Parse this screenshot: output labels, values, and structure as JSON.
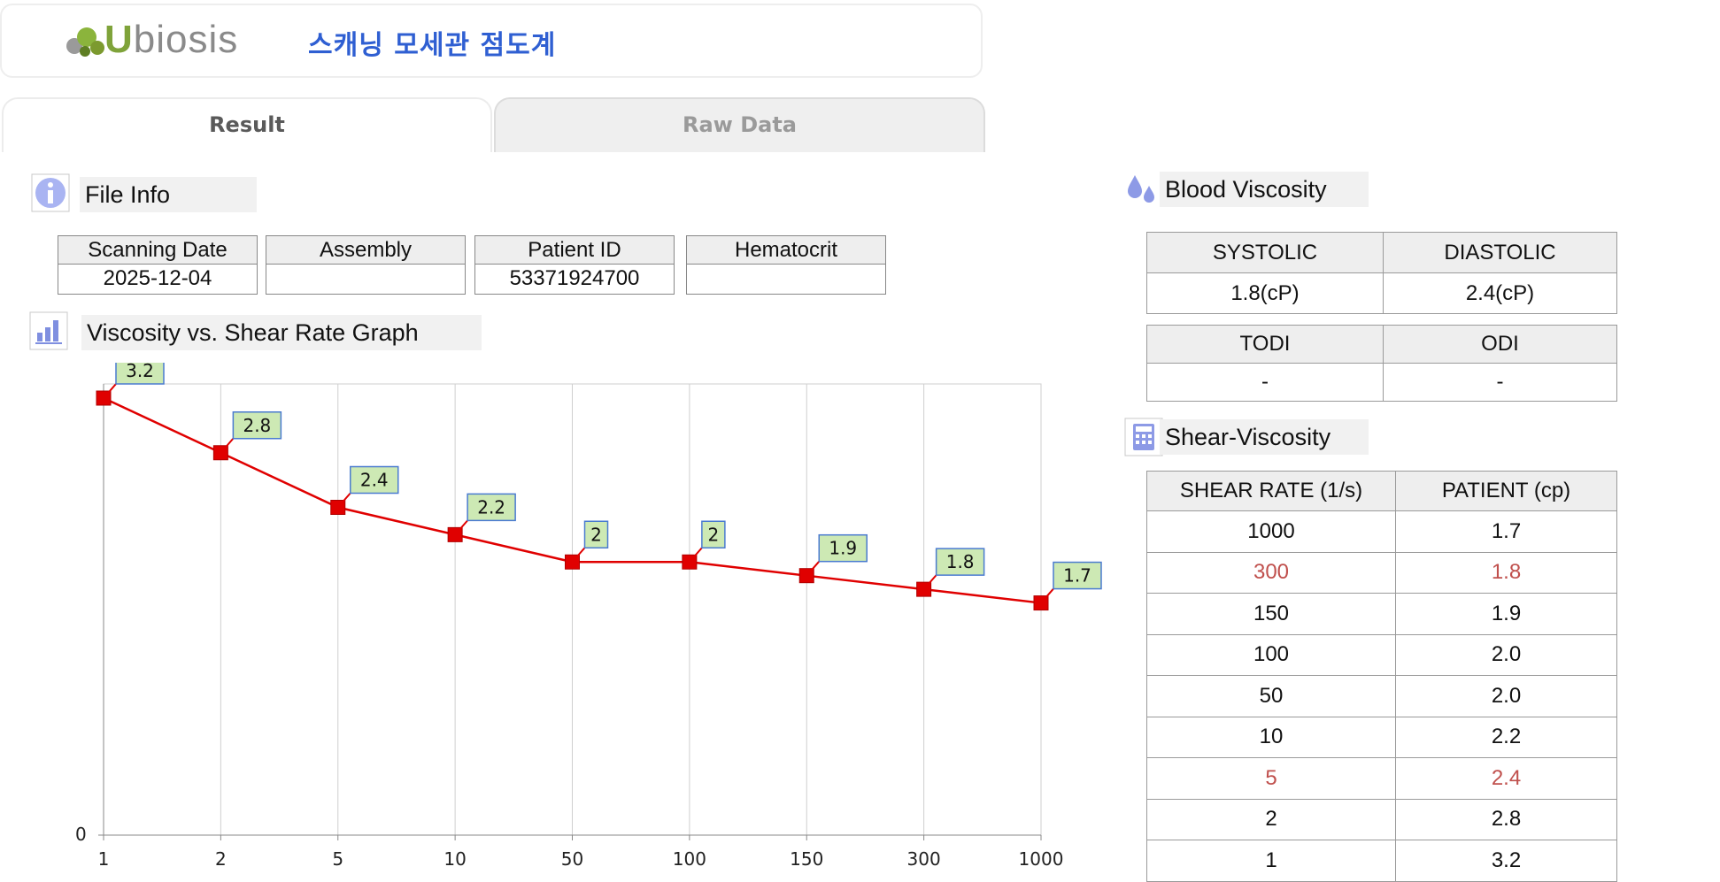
{
  "header": {
    "logo_letter": "U",
    "logo_rest": "biosis",
    "title": "스캐닝 모세관 점도계",
    "accent_color": "#2f5fd2"
  },
  "tabs": [
    {
      "label": "Result",
      "active": true
    },
    {
      "label": "Raw Data",
      "active": false
    }
  ],
  "file_info": {
    "title": "File Info",
    "icon": "info-icon",
    "columns": [
      "Scanning Date",
      "Assembly",
      "Patient ID",
      "Hematocrit"
    ],
    "values": [
      "2025-12-04",
      "",
      "53371924700",
      ""
    ]
  },
  "graph_section": {
    "title": "Viscosity vs. Shear Rate Graph",
    "icon": "bar-chart-icon"
  },
  "chart_data": {
    "type": "line",
    "categories": [
      "1",
      "2",
      "5",
      "10",
      "50",
      "100",
      "150",
      "300",
      "1000"
    ],
    "series": [
      {
        "values": [
          3.2,
          2.8,
          2.4,
          2.2,
          2,
          2,
          1.9,
          1.8,
          1.7
        ],
        "color": "#e00000"
      }
    ],
    "data_labels": [
      "3.2",
      "2.8",
      "2.4",
      "2.2",
      "2",
      "2",
      "1.9",
      "1.8",
      "1.7"
    ],
    "y_tick_labels": [
      "0"
    ],
    "ylim": [
      0,
      3.2
    ],
    "grid": "vertical",
    "label_bg": "#cde9b4",
    "label_border": "#4a7bd0"
  },
  "blood_viscosity": {
    "title": "Blood Viscosity",
    "icon": "drop-icon",
    "row1_headers": [
      "SYSTOLIC",
      "DIASTOLIC"
    ],
    "row1_values": [
      "1.8(cP)",
      "2.4(cP)"
    ],
    "row2_headers": [
      "TODI",
      "ODI"
    ],
    "row2_values": [
      "-",
      "-"
    ]
  },
  "shear_viscosity": {
    "title": "Shear-Viscosity",
    "icon": "calculator-icon",
    "headers": [
      "SHEAR RATE (1/s)",
      "PATIENT (cp)"
    ],
    "rows": [
      {
        "rate": "1000",
        "value": "1.7",
        "highlight": false
      },
      {
        "rate": "300",
        "value": "1.8",
        "highlight": true
      },
      {
        "rate": "150",
        "value": "1.9",
        "highlight": false
      },
      {
        "rate": "100",
        "value": "2.0",
        "highlight": false
      },
      {
        "rate": "50",
        "value": "2.0",
        "highlight": false
      },
      {
        "rate": "10",
        "value": "2.2",
        "highlight": false
      },
      {
        "rate": "5",
        "value": "2.4",
        "highlight": true
      },
      {
        "rate": "2",
        "value": "2.8",
        "highlight": false
      },
      {
        "rate": "1",
        "value": "3.2",
        "highlight": false
      }
    ],
    "highlight_color": "#c0504d"
  }
}
